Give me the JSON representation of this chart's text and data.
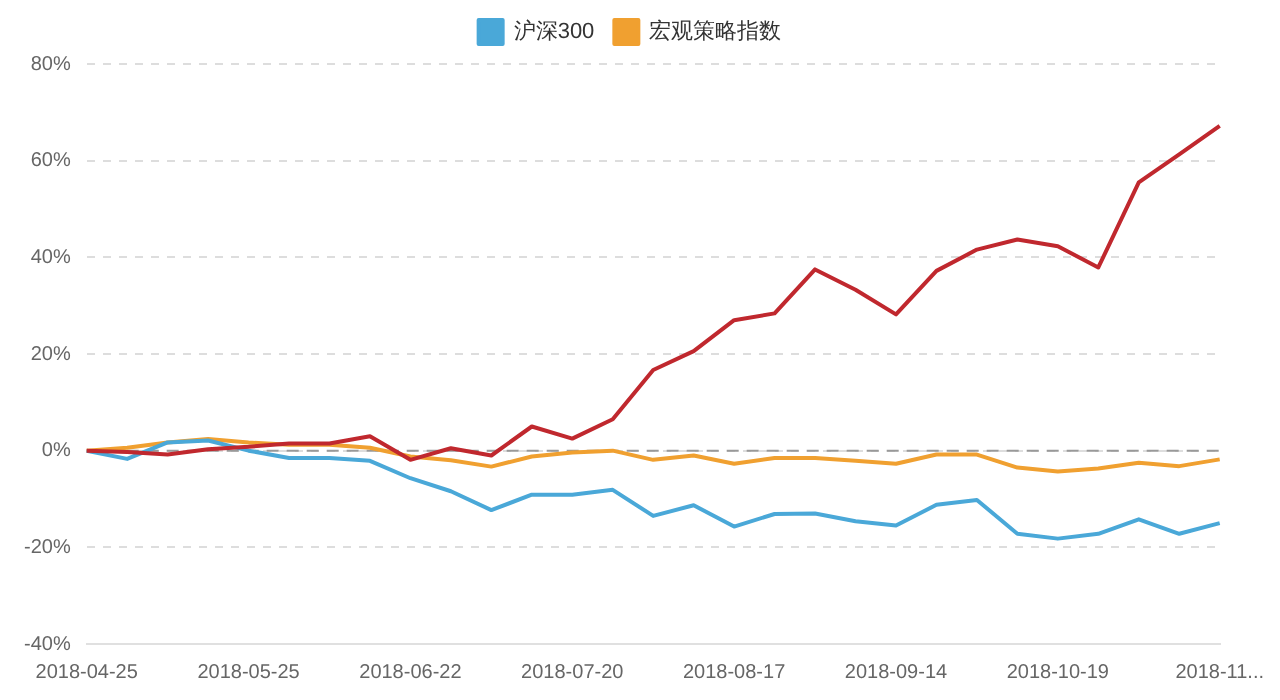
{
  "chart_data": {
    "type": "line",
    "categories": [
      "2018-04-25",
      null,
      null,
      null,
      "2018-05-25",
      null,
      null,
      null,
      "2018-06-22",
      null,
      null,
      null,
      "2018-07-20",
      null,
      null,
      null,
      "2018-08-17",
      null,
      null,
      null,
      "2018-09-14",
      null,
      null,
      null,
      "2018-10-19",
      null,
      null,
      null,
      "2018-11..."
    ],
    "series": [
      {
        "color": "#c0282e",
        "values": [
          0,
          -0.3,
          -0.8,
          0.3,
          0.8,
          1.5,
          1.5,
          3.0,
          -1.9,
          0.5,
          -1.0,
          5.0,
          2.5,
          6.5,
          16.7,
          20.6,
          27.0,
          28.4,
          37.5,
          33.3,
          28.2,
          37.2,
          41.6,
          43.7,
          42.3,
          37.9,
          55.5,
          61.3,
          67.2
        ]
      },
      {
        "name": "沪深300",
        "color": "#4aa8d8",
        "values": [
          0,
          -1.7,
          1.7,
          2.1,
          0,
          -1.5,
          -1.5,
          -2.1,
          -5.7,
          -8.4,
          -12.3,
          -9.1,
          -9.1,
          -8.1,
          -13.5,
          -11.3,
          -15.7,
          -13.1,
          -13,
          -14.6,
          -15.5,
          -11.2,
          -10.2,
          -17.2,
          -18.2,
          -17.2,
          -14.2,
          -17.2,
          -15.0
        ]
      },
      {
        "name": "宏观策略指数",
        "color": "#f0a030",
        "values": [
          0,
          0.6,
          1.7,
          2.4,
          1.7,
          1.2,
          1.2,
          0.6,
          -1.2,
          -2,
          -3.3,
          -1.2,
          -0.4,
          0,
          -1.9,
          -1.0,
          -2.7,
          -1.5,
          -1.5,
          -2.1,
          -2.7,
          -0.8,
          -0.8,
          -3.5,
          -4.3,
          -3.7,
          -2.5,
          -3.2,
          -1.8
        ]
      }
    ],
    "ylim": [
      -40,
      80
    ],
    "yticks": [
      {
        "value": -40,
        "label": "-40%"
      },
      {
        "value": -20,
        "label": "-20%"
      },
      {
        "value": 0,
        "label": "0%"
      },
      {
        "value": 20,
        "label": "20%"
      },
      {
        "value": 40,
        "label": "40%"
      },
      {
        "value": 60,
        "label": "60%"
      },
      {
        "value": 80,
        "label": "80%"
      }
    ],
    "grid": "y",
    "legend": "top",
    "marker": "none",
    "line_style": "solid",
    "ref_lines": [
      {
        "axis": "y",
        "value": 0,
        "color": "#999999",
        "line_style": "dashed"
      }
    ]
  }
}
